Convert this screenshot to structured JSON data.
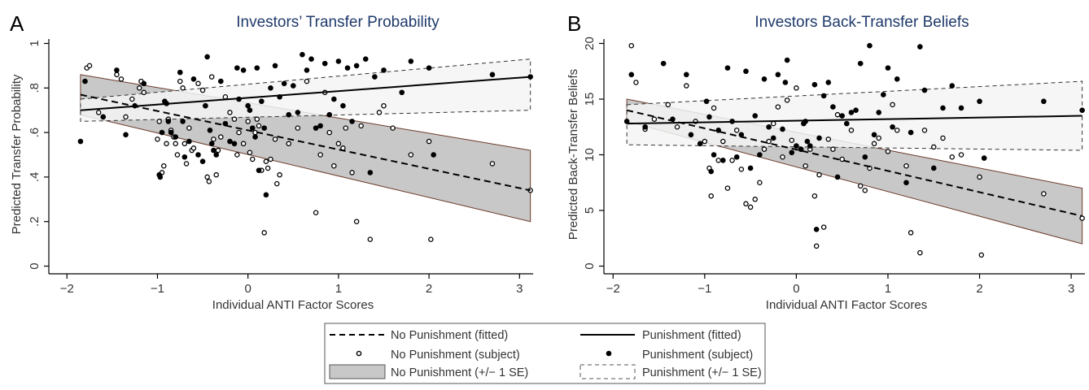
{
  "legend": {
    "items": [
      {
        "label": "No Punishment (fitted)",
        "kind": "dashed-line"
      },
      {
        "label": "Punishment (fitted)",
        "kind": "solid-line"
      },
      {
        "label": "No Punishment (subject)",
        "kind": "hollow-dot"
      },
      {
        "label": "Punishment (subject)",
        "kind": "filled-dot"
      },
      {
        "label": "No Punishment (+/− 1 SE)",
        "kind": "gray-band"
      },
      {
        "label": "Punishment (+/− 1 SE)",
        "kind": "dashed-box"
      }
    ]
  },
  "colors": {
    "band_no_punishment": "#c8c8c8",
    "band_punishment": "#f3f5f3",
    "title": "#1f3a6b"
  },
  "chart_data": [
    {
      "panel": "A",
      "type": "scatter",
      "title": "Investors’ Transfer Probability",
      "xlabel": "Individual ANTI Factor Scores",
      "ylabel": "Predicted Transfer Probability",
      "xlim": [
        -2.2,
        3.15
      ],
      "ylim": [
        -0.02,
        1.02
      ],
      "xticks": [
        -2,
        -1,
        0,
        1,
        2,
        3
      ],
      "xtick_labels": [
        "−2",
        "−1",
        "0",
        "1",
        "2",
        "3"
      ],
      "yticks": [
        0,
        0.2,
        0.4,
        0.6,
        0.8,
        1
      ],
      "ytick_labels": [
        "0",
        ".2",
        ".4",
        ".6",
        ".8",
        "1"
      ],
      "fits": {
        "no_punishment": {
          "x": [
            -1.85,
            3.12
          ],
          "y": [
            0.77,
            0.34
          ],
          "se_upper": [
            0.86,
            0.52
          ],
          "se_lower": [
            0.68,
            0.2
          ]
        },
        "punishment": {
          "x": [
            -1.85,
            3.12
          ],
          "y": [
            0.7,
            0.85
          ],
          "se_upper": [
            0.75,
            0.93
          ],
          "se_lower": [
            0.65,
            0.7
          ]
        }
      },
      "no_punishment_points": [
        [
          -1.78,
          0.89
        ],
        [
          -1.75,
          0.9
        ],
        [
          -1.65,
          0.69
        ],
        [
          -1.6,
          0.67
        ],
        [
          -1.45,
          0.86
        ],
        [
          -1.4,
          0.84
        ],
        [
          -1.35,
          0.67
        ],
        [
          -1.28,
          0.75
        ],
        [
          -1.2,
          0.8
        ],
        [
          -1.18,
          0.83
        ],
        [
          -1.15,
          0.78
        ],
        [
          -1.0,
          0.57
        ],
        [
          -0.98,
          0.65
        ],
        [
          -0.95,
          0.42
        ],
        [
          -0.93,
          0.45
        ],
        [
          -0.9,
          0.55
        ],
        [
          -0.88,
          0.66
        ],
        [
          -0.85,
          0.61
        ],
        [
          -0.82,
          0.58
        ],
        [
          -0.8,
          0.55
        ],
        [
          -0.78,
          0.5
        ],
        [
          -0.75,
          0.83
        ],
        [
          -0.72,
          0.8
        ],
        [
          -0.7,
          0.55
        ],
        [
          -0.68,
          0.46
        ],
        [
          -0.65,
          0.62
        ],
        [
          -0.62,
          0.52
        ],
        [
          -0.6,
          0.53
        ],
        [
          -0.55,
          0.82
        ],
        [
          -0.5,
          0.79
        ],
        [
          -0.47,
          0.72
        ],
        [
          -0.45,
          0.4
        ],
        [
          -0.43,
          0.38
        ],
        [
          -0.4,
          0.85
        ],
        [
          -0.38,
          0.57
        ],
        [
          -0.35,
          0.41
        ],
        [
          -0.33,
          0.52
        ],
        [
          -0.3,
          0.58
        ],
        [
          -0.25,
          0.76
        ],
        [
          -0.2,
          0.69
        ],
        [
          -0.15,
          0.66
        ],
        [
          -0.12,
          0.5
        ],
        [
          -0.1,
          0.6
        ],
        [
          -0.05,
          0.55
        ],
        [
          0.0,
          0.65
        ],
        [
          0.02,
          0.51
        ],
        [
          0.05,
          0.48
        ],
        [
          0.08,
          0.6
        ],
        [
          0.1,
          0.66
        ],
        [
          0.12,
          0.63
        ],
        [
          0.15,
          0.43
        ],
        [
          0.18,
          0.15
        ],
        [
          0.2,
          0.47
        ],
        [
          0.22,
          0.44
        ],
        [
          0.25,
          0.48
        ],
        [
          0.3,
          0.57
        ],
        [
          0.32,
          0.37
        ],
        [
          0.35,
          0.41
        ],
        [
          0.45,
          0.55
        ],
        [
          0.55,
          0.62
        ],
        [
          0.65,
          0.83
        ],
        [
          0.75,
          0.24
        ],
        [
          0.8,
          0.5
        ],
        [
          0.85,
          0.78
        ],
        [
          0.9,
          0.6
        ],
        [
          0.95,
          0.45
        ],
        [
          1.0,
          0.55
        ],
        [
          1.05,
          0.53
        ],
        [
          1.08,
          0.62
        ],
        [
          1.15,
          0.42
        ],
        [
          1.2,
          0.2
        ],
        [
          1.25,
          0.63
        ],
        [
          1.35,
          0.12
        ],
        [
          1.45,
          0.69
        ],
        [
          1.5,
          0.72
        ],
        [
          1.6,
          0.62
        ],
        [
          1.8,
          0.5
        ],
        [
          2.0,
          0.56
        ],
        [
          2.02,
          0.12
        ],
        [
          2.7,
          0.46
        ],
        [
          3.12,
          0.34
        ]
      ],
      "punishment_points": [
        [
          -1.85,
          0.56
        ],
        [
          -1.8,
          0.83
        ],
        [
          -1.6,
          0.67
        ],
        [
          -1.45,
          0.88
        ],
        [
          -1.35,
          0.59
        ],
        [
          -1.25,
          0.72
        ],
        [
          -1.15,
          0.82
        ],
        [
          -0.98,
          0.41
        ],
        [
          -0.97,
          0.4
        ],
        [
          -0.95,
          0.6
        ],
        [
          -0.92,
          0.74
        ],
        [
          -0.9,
          0.73
        ],
        [
          -0.88,
          0.65
        ],
        [
          -0.85,
          0.6
        ],
        [
          -0.8,
          0.58
        ],
        [
          -0.75,
          0.87
        ],
        [
          -0.72,
          0.65
        ],
        [
          -0.7,
          0.49
        ],
        [
          -0.65,
          0.56
        ],
        [
          -0.6,
          0.84
        ],
        [
          -0.55,
          0.5
        ],
        [
          -0.5,
          0.47
        ],
        [
          -0.47,
          0.72
        ],
        [
          -0.45,
          0.94
        ],
        [
          -0.42,
          0.61
        ],
        [
          -0.4,
          0.55
        ],
        [
          -0.38,
          0.52
        ],
        [
          -0.35,
          0.5
        ],
        [
          -0.3,
          0.83
        ],
        [
          -0.25,
          0.64
        ],
        [
          -0.2,
          0.56
        ],
        [
          -0.15,
          0.55
        ],
        [
          -0.12,
          0.89
        ],
        [
          -0.1,
          0.75
        ],
        [
          -0.05,
          0.88
        ],
        [
          0.0,
          0.72
        ],
        [
          0.02,
          0.7
        ],
        [
          0.05,
          0.62
        ],
        [
          0.08,
          0.58
        ],
        [
          0.1,
          0.89
        ],
        [
          0.12,
          0.43
        ],
        [
          0.15,
          0.74
        ],
        [
          0.18,
          0.62
        ],
        [
          0.2,
          0.32
        ],
        [
          0.25,
          0.8
        ],
        [
          0.3,
          0.9
        ],
        [
          0.35,
          0.76
        ],
        [
          0.4,
          0.82
        ],
        [
          0.45,
          0.68
        ],
        [
          0.5,
          0.81
        ],
        [
          0.55,
          0.69
        ],
        [
          0.6,
          0.95
        ],
        [
          0.65,
          0.88
        ],
        [
          0.7,
          0.93
        ],
        [
          0.75,
          0.62
        ],
        [
          0.8,
          0.63
        ],
        [
          0.85,
          0.91
        ],
        [
          0.9,
          0.68
        ],
        [
          0.95,
          0.75
        ],
        [
          1.0,
          0.92
        ],
        [
          1.05,
          0.72
        ],
        [
          1.1,
          0.89
        ],
        [
          1.15,
          0.65
        ],
        [
          1.2,
          0.9
        ],
        [
          1.3,
          0.93
        ],
        [
          1.35,
          0.42
        ],
        [
          1.4,
          0.85
        ],
        [
          1.5,
          0.88
        ],
        [
          1.7,
          0.78
        ],
        [
          1.8,
          0.92
        ],
        [
          2.0,
          0.89
        ],
        [
          2.05,
          0.5
        ],
        [
          2.7,
          0.86
        ],
        [
          3.12,
          0.85
        ]
      ]
    },
    {
      "panel": "B",
      "type": "scatter",
      "title": "Investors Back-Transfer Beliefs",
      "xlabel": "Individual ANTI Factor Scores",
      "ylabel": "Predicted Back-Transfer Beliefs",
      "xlim": [
        -2.1,
        3.15
      ],
      "ylim": [
        -0.4,
        20.4
      ],
      "xticks": [
        -2,
        -1,
        0,
        1,
        2,
        3
      ],
      "xtick_labels": [
        "−2",
        "−1",
        "0",
        "1",
        "2",
        "3"
      ],
      "yticks": [
        0,
        5,
        10,
        15,
        20
      ],
      "ytick_labels": [
        "0",
        "5",
        "10",
        "15",
        "20"
      ],
      "fits": {
        "no_punishment": {
          "x": [
            -1.85,
            3.12
          ],
          "y": [
            14.0,
            4.5
          ],
          "se_upper": [
            15.0,
            7.0
          ],
          "se_lower": [
            13.0,
            2.0
          ]
        },
        "punishment": {
          "x": [
            -1.85,
            3.12
          ],
          "y": [
            12.8,
            13.5
          ],
          "se_upper": [
            14.5,
            16.6
          ],
          "se_lower": [
            10.9,
            10.4
          ]
        }
      },
      "no_punishment_points": [
        [
          -1.8,
          19.8
        ],
        [
          -1.75,
          16.5
        ],
        [
          -1.65,
          12.3
        ],
        [
          -1.55,
          13.2
        ],
        [
          -1.4,
          14.5
        ],
        [
          -1.3,
          12.5
        ],
        [
          -1.2,
          16.2
        ],
        [
          -1.1,
          13.0
        ],
        [
          -1.0,
          11.2
        ],
        [
          -0.95,
          8.8
        ],
        [
          -0.93,
          6.3
        ],
        [
          -0.9,
          14.2
        ],
        [
          -0.85,
          9.5
        ],
        [
          -0.8,
          11.2
        ],
        [
          -0.75,
          7.0
        ],
        [
          -0.7,
          9.5
        ],
        [
          -0.65,
          12.2
        ],
        [
          -0.6,
          8.7
        ],
        [
          -0.55,
          5.6
        ],
        [
          -0.5,
          5.3
        ],
        [
          -0.45,
          6.0
        ],
        [
          -0.4,
          7.5
        ],
        [
          -0.35,
          10.5
        ],
        [
          -0.3,
          11.2
        ],
        [
          -0.25,
          12.8
        ],
        [
          -0.2,
          14.3
        ],
        [
          -0.15,
          9.8
        ],
        [
          -0.1,
          14.9
        ],
        [
          -0.05,
          11.3
        ],
        [
          0.0,
          16.0
        ],
        [
          0.05,
          10.5
        ],
        [
          0.1,
          9.0
        ],
        [
          0.15,
          10.5
        ],
        [
          0.2,
          6.3
        ],
        [
          0.22,
          1.8
        ],
        [
          0.25,
          8.2
        ],
        [
          0.3,
          3.5
        ],
        [
          0.35,
          11.4
        ],
        [
          0.4,
          10.5
        ],
        [
          0.45,
          13.6
        ],
        [
          0.5,
          9.6
        ],
        [
          0.6,
          12.2
        ],
        [
          0.7,
          7.2
        ],
        [
          0.75,
          6.8
        ],
        [
          0.8,
          8.8
        ],
        [
          0.85,
          11.0
        ],
        [
          0.9,
          11.5
        ],
        [
          1.0,
          10.3
        ],
        [
          1.05,
          14.5
        ],
        [
          1.1,
          12.2
        ],
        [
          1.2,
          9.0
        ],
        [
          1.25,
          3.0
        ],
        [
          1.35,
          1.2
        ],
        [
          1.4,
          12.2
        ],
        [
          1.5,
          10.7
        ],
        [
          1.6,
          11.5
        ],
        [
          1.7,
          9.8
        ],
        [
          1.8,
          10.0
        ],
        [
          2.0,
          8.0
        ],
        [
          2.02,
          1.0
        ],
        [
          2.7,
          6.5
        ],
        [
          3.12,
          4.3
        ]
      ],
      "punishment_points": [
        [
          -1.85,
          13.0
        ],
        [
          -1.8,
          17.2
        ],
        [
          -1.65,
          12.5
        ],
        [
          -1.45,
          18.2
        ],
        [
          -1.35,
          13.2
        ],
        [
          -1.2,
          17.2
        ],
        [
          -1.15,
          11.8
        ],
        [
          -1.05,
          11.0
        ],
        [
          -0.98,
          14.8
        ],
        [
          -0.95,
          13.4
        ],
        [
          -0.93,
          8.5
        ],
        [
          -0.9,
          10.0
        ],
        [
          -0.85,
          12.2
        ],
        [
          -0.8,
          9.5
        ],
        [
          -0.75,
          17.8
        ],
        [
          -0.7,
          13.0
        ],
        [
          -0.65,
          9.8
        ],
        [
          -0.6,
          11.8
        ],
        [
          -0.55,
          17.5
        ],
        [
          -0.5,
          8.8
        ],
        [
          -0.45,
          13.5
        ],
        [
          -0.4,
          10.0
        ],
        [
          -0.35,
          16.8
        ],
        [
          -0.3,
          12.5
        ],
        [
          -0.25,
          11.5
        ],
        [
          -0.2,
          17.2
        ],
        [
          -0.15,
          12.3
        ],
        [
          -0.12,
          16.5
        ],
        [
          -0.1,
          18.5
        ],
        [
          -0.05,
          10.2
        ],
        [
          0.0,
          10.8
        ],
        [
          0.05,
          10.5
        ],
        [
          0.08,
          12.8
        ],
        [
          0.1,
          13.0
        ],
        [
          0.12,
          11.2
        ],
        [
          0.15,
          10.8
        ],
        [
          0.2,
          16.3
        ],
        [
          0.22,
          3.3
        ],
        [
          0.25,
          11.5
        ],
        [
          0.3,
          15.3
        ],
        [
          0.35,
          16.5
        ],
        [
          0.4,
          14.3
        ],
        [
          0.45,
          8.0
        ],
        [
          0.5,
          13.5
        ],
        [
          0.55,
          12.8
        ],
        [
          0.6,
          13.8
        ],
        [
          0.65,
          14.0
        ],
        [
          0.7,
          18.2
        ],
        [
          0.75,
          9.8
        ],
        [
          0.8,
          19.8
        ],
        [
          0.85,
          11.8
        ],
        [
          0.9,
          13.8
        ],
        [
          0.95,
          15.4
        ],
        [
          1.0,
          17.8
        ],
        [
          1.05,
          12.5
        ],
        [
          1.1,
          16.8
        ],
        [
          1.2,
          7.5
        ],
        [
          1.25,
          12.0
        ],
        [
          1.35,
          19.7
        ],
        [
          1.4,
          15.8
        ],
        [
          1.5,
          8.8
        ],
        [
          1.6,
          14.2
        ],
        [
          1.7,
          16.2
        ],
        [
          1.8,
          14.2
        ],
        [
          2.0,
          14.8
        ],
        [
          2.05,
          9.7
        ],
        [
          2.7,
          14.8
        ],
        [
          3.12,
          14.0
        ]
      ]
    }
  ]
}
